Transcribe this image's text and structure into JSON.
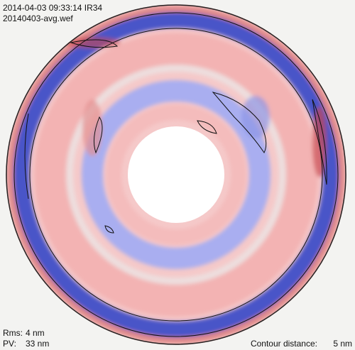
{
  "header": {
    "timestamp": "2014-04-03 09:33:14 IR34",
    "file": "20140403-avg.wef"
  },
  "stats": {
    "rms": {
      "label": "Rms:",
      "value": "4 nm"
    },
    "pv": {
      "label": "PV:",
      "value": "33 nm"
    }
  },
  "contour": {
    "label": "Contour distance:",
    "value": "5 nm"
  }
}
